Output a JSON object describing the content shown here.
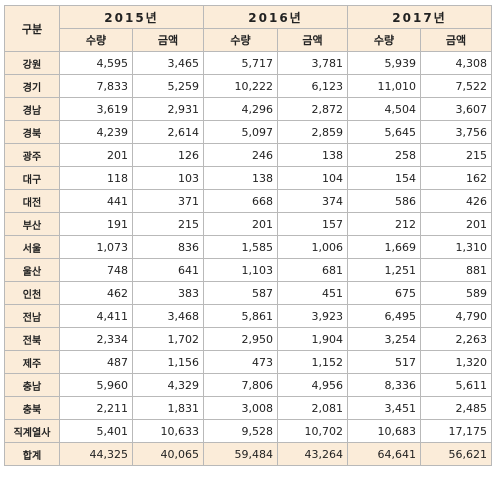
{
  "table": {
    "corner_label": "구분",
    "years": [
      "2015년",
      "2016년",
      "2017년"
    ],
    "sub_headers": [
      "수량",
      "금액",
      "수량",
      "금액",
      "수량",
      "금액"
    ],
    "rows": [
      {
        "region": "강원",
        "values": [
          "4,595",
          "3,465",
          "5,717",
          "3,781",
          "5,939",
          "4,308"
        ]
      },
      {
        "region": "경기",
        "values": [
          "7,833",
          "5,259",
          "10,222",
          "6,123",
          "11,010",
          "7,522"
        ]
      },
      {
        "region": "경남",
        "values": [
          "3,619",
          "2,931",
          "4,296",
          "2,872",
          "4,504",
          "3,607"
        ]
      },
      {
        "region": "경북",
        "values": [
          "4,239",
          "2,614",
          "5,097",
          "2,859",
          "5,645",
          "3,756"
        ]
      },
      {
        "region": "광주",
        "values": [
          "201",
          "126",
          "246",
          "138",
          "258",
          "215"
        ]
      },
      {
        "region": "대구",
        "values": [
          "118",
          "103",
          "138",
          "104",
          "154",
          "162"
        ]
      },
      {
        "region": "대전",
        "values": [
          "441",
          "371",
          "668",
          "374",
          "586",
          "426"
        ]
      },
      {
        "region": "부산",
        "values": [
          "191",
          "215",
          "201",
          "157",
          "212",
          "201"
        ]
      },
      {
        "region": "서울",
        "values": [
          "1,073",
          "836",
          "1,585",
          "1,006",
          "1,669",
          "1,310"
        ]
      },
      {
        "region": "울산",
        "values": [
          "748",
          "641",
          "1,103",
          "681",
          "1,251",
          "881"
        ]
      },
      {
        "region": "인천",
        "values": [
          "462",
          "383",
          "587",
          "451",
          "675",
          "589"
        ]
      },
      {
        "region": "전남",
        "values": [
          "4,411",
          "3,468",
          "5,861",
          "3,923",
          "6,495",
          "4,790"
        ]
      },
      {
        "region": "전북",
        "values": [
          "2,334",
          "1,702",
          "2,950",
          "1,904",
          "3,254",
          "2,263"
        ]
      },
      {
        "region": "제주",
        "values": [
          "487",
          "1,156",
          "473",
          "1,152",
          "517",
          "1,320"
        ]
      },
      {
        "region": "충남",
        "values": [
          "5,960",
          "4,329",
          "7,806",
          "4,956",
          "8,336",
          "5,611"
        ]
      },
      {
        "region": "충북",
        "values": [
          "2,211",
          "1,831",
          "3,008",
          "2,081",
          "3,451",
          "2,485"
        ]
      },
      {
        "region": "직계열사",
        "values": [
          "5,401",
          "10,633",
          "9,528",
          "10,702",
          "10,683",
          "17,175"
        ]
      }
    ],
    "total": {
      "region": "합계",
      "values": [
        "44,325",
        "40,065",
        "59,484",
        "43,264",
        "64,641",
        "56,621"
      ]
    }
  }
}
